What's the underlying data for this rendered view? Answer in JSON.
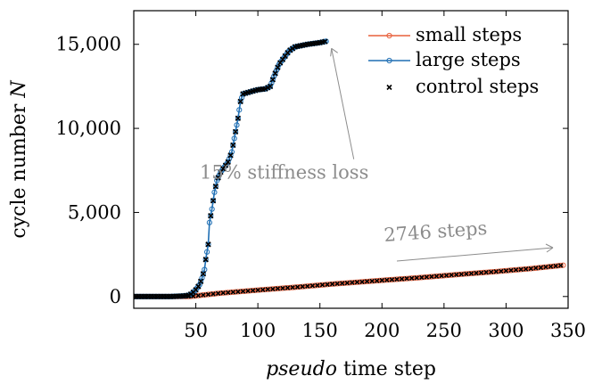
{
  "colors": {
    "small": "#e8603c",
    "large": "#1f6fb4",
    "control": "#000000",
    "annotation": "#8c8c8c",
    "axis": "#000000"
  },
  "chart_data": {
    "type": "line",
    "xlabel": "pseudo time step",
    "ylabel": "cycle number N",
    "xlim": [
      0,
      350
    ],
    "ylim": [
      -700,
      17000
    ],
    "x_ticks": [
      50,
      100,
      150,
      200,
      250,
      300,
      350
    ],
    "x_tick_labels": [
      "50",
      "100",
      "150",
      "200",
      "250",
      "300",
      "350"
    ],
    "y_ticks": [
      0,
      5000,
      10000,
      15000
    ],
    "y_tick_labels": [
      "0",
      "5,000",
      "10,000",
      "15,000"
    ],
    "legend_position": "top-right",
    "grid": false,
    "series": [
      {
        "name": "small steps",
        "key": "small",
        "marker": "circle",
        "points": [
          [
            0,
            0
          ],
          [
            45,
            0
          ],
          [
            70,
            200
          ],
          [
            100,
            380
          ],
          [
            130,
            550
          ],
          [
            160,
            740
          ],
          [
            200,
            960
          ],
          [
            230,
            1120
          ],
          [
            260,
            1300
          ],
          [
            290,
            1470
          ],
          [
            320,
            1660
          ],
          [
            346,
            1860
          ]
        ]
      },
      {
        "name": "large steps",
        "key": "large",
        "marker": "circle",
        "points": [
          [
            0,
            0
          ],
          [
            30,
            0
          ],
          [
            40,
            30
          ],
          [
            45,
            80
          ],
          [
            48,
            250
          ],
          [
            50,
            400
          ],
          [
            53,
            700
          ],
          [
            55,
            1100
          ],
          [
            57,
            1600
          ],
          [
            58,
            2200
          ],
          [
            60,
            3100
          ],
          [
            61,
            4400
          ],
          [
            63,
            5200
          ],
          [
            65,
            6200
          ],
          [
            67,
            6900
          ],
          [
            70,
            7400
          ],
          [
            73,
            7700
          ],
          [
            76,
            8000
          ],
          [
            79,
            8600
          ],
          [
            81,
            9400
          ],
          [
            84,
            10600
          ],
          [
            86,
            11600
          ],
          [
            88,
            12050
          ],
          [
            95,
            12200
          ],
          [
            100,
            12300
          ],
          [
            106,
            12350
          ],
          [
            110,
            12500
          ],
          [
            113,
            13100
          ],
          [
            117,
            13800
          ],
          [
            121,
            14200
          ],
          [
            125,
            14600
          ],
          [
            130,
            14850
          ],
          [
            140,
            15000
          ],
          [
            150,
            15100
          ],
          [
            155,
            15180
          ]
        ]
      },
      {
        "name": "control steps",
        "key": "control",
        "marker": "x"
      }
    ],
    "annotations": [
      {
        "text": "15% stiffness loss",
        "x": 127,
        "y": 7000
      },
      {
        "text": "2746 steps",
        "x": 248,
        "y": 3300
      }
    ]
  }
}
